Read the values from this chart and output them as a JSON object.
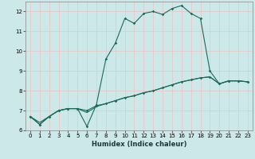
{
  "xlabel": "Humidex (Indice chaleur)",
  "bg_color": "#cce8e8",
  "grid_color": "#e8c8c8",
  "line_color": "#1a6b5a",
  "xlim": [
    -0.5,
    23.5
  ],
  "ylim": [
    6,
    12.5
  ],
  "xticks": [
    0,
    1,
    2,
    3,
    4,
    5,
    6,
    7,
    8,
    9,
    10,
    11,
    12,
    13,
    14,
    15,
    16,
    17,
    18,
    19,
    20,
    21,
    22,
    23
  ],
  "yticks": [
    6,
    7,
    8,
    9,
    10,
    11,
    12
  ],
  "line1_x": [
    0,
    1,
    2,
    3,
    4,
    5,
    6,
    7,
    8,
    9,
    10,
    11,
    12,
    13,
    14,
    15,
    16,
    17,
    18,
    19,
    20,
    21,
    22,
    23
  ],
  "line1_y": [
    6.7,
    6.3,
    6.7,
    7.0,
    7.1,
    7.1,
    6.2,
    7.3,
    9.6,
    10.4,
    11.65,
    11.4,
    11.9,
    12.0,
    11.85,
    12.15,
    12.3,
    11.9,
    11.65,
    9.0,
    8.35,
    8.5,
    8.5,
    8.45
  ],
  "line2_x": [
    0,
    1,
    2,
    3,
    4,
    5,
    6,
    7,
    8,
    9,
    10,
    11,
    12,
    13,
    14,
    15,
    16,
    17,
    18,
    19,
    20,
    21,
    22,
    23
  ],
  "line2_y": [
    6.7,
    6.3,
    6.7,
    7.0,
    7.1,
    7.1,
    7.0,
    7.25,
    7.35,
    7.5,
    7.65,
    7.75,
    7.9,
    8.0,
    8.15,
    8.3,
    8.45,
    8.55,
    8.65,
    8.7,
    8.35,
    8.5,
    8.5,
    8.45
  ],
  "line3_x": [
    0,
    1,
    2,
    3,
    4,
    5,
    6,
    7,
    8,
    9,
    10,
    11,
    12,
    13,
    14,
    15,
    16,
    17,
    18,
    19,
    20,
    21,
    22,
    23
  ],
  "line3_y": [
    6.7,
    6.4,
    6.7,
    7.0,
    7.1,
    7.1,
    6.9,
    7.2,
    7.35,
    7.5,
    7.65,
    7.75,
    7.9,
    8.0,
    8.15,
    8.3,
    8.45,
    8.55,
    8.65,
    8.7,
    8.35,
    8.5,
    8.5,
    8.45
  ],
  "marker_style": "D",
  "marker_size": 1.8,
  "line_width": 0.8,
  "xlabel_fontsize": 6.0,
  "tick_fontsize": 5.0
}
